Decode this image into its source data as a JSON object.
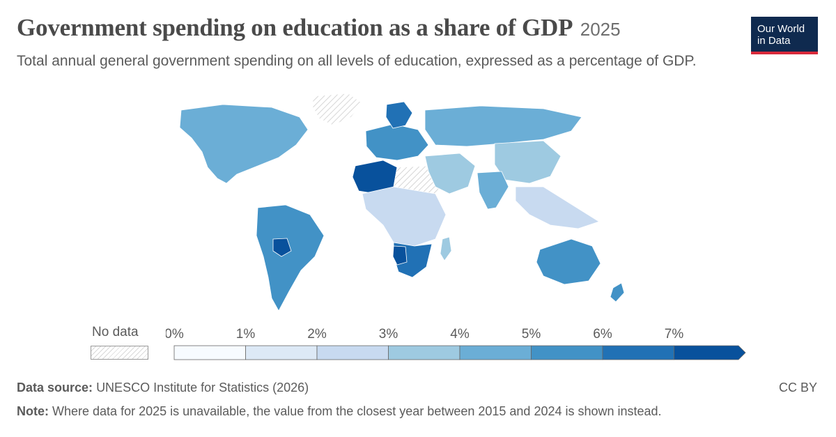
{
  "header": {
    "title": "Government spending on education as a share of GDP",
    "year": "2025",
    "subtitle": "Total annual general government spending on all levels of education, expressed as a percentage of GDP."
  },
  "logo": {
    "line1": "Our World",
    "line2": "in Data"
  },
  "legend": {
    "no_data_label": "No data",
    "ticks": [
      "0%",
      "1%",
      "2%",
      "3%",
      "4%",
      "5%",
      "6%",
      "7%"
    ],
    "colors": [
      "#f7fbff",
      "#dde9f6",
      "#c8daf0",
      "#9ecae1",
      "#6baed6",
      "#4292c6",
      "#2171b5",
      "#08519c"
    ],
    "no_data_pattern": "hatched-gray"
  },
  "regions": [
    {
      "name": "north-america",
      "color": "#6baed6"
    },
    {
      "name": "greenland",
      "color": "no-data"
    },
    {
      "name": "south-america",
      "color": "#4292c6"
    },
    {
      "name": "bolivia",
      "color": "#08519c"
    },
    {
      "name": "europe",
      "color": "#4292c6"
    },
    {
      "name": "scandinavia",
      "color": "#2171b5"
    },
    {
      "name": "north-africa",
      "color": "#08519c"
    },
    {
      "name": "sahel",
      "color": "no-data"
    },
    {
      "name": "central-africa",
      "color": "#c8daf0"
    },
    {
      "name": "southern-africa",
      "color": "#2171b5"
    },
    {
      "name": "namibia",
      "color": "#08519c"
    },
    {
      "name": "russia",
      "color": "#6baed6"
    },
    {
      "name": "middle-east",
      "color": "#9ecae1"
    },
    {
      "name": "china",
      "color": "#9ecae1"
    },
    {
      "name": "india",
      "color": "#6baed6"
    },
    {
      "name": "southeast-asia",
      "color": "#c8daf0"
    },
    {
      "name": "australia",
      "color": "#4292c6"
    },
    {
      "name": "new-zealand",
      "color": "#4292c6"
    },
    {
      "name": "madagascar",
      "color": "#9ecae1"
    }
  ],
  "footer": {
    "source_label": "Data source:",
    "source_text": "UNESCO Institute for Statistics (2026)",
    "note_label": "Note:",
    "note_text": "Where data for 2025 is unavailable, the value from the closest year between 2015 and 2024 is shown instead.",
    "license": "CC BY"
  }
}
